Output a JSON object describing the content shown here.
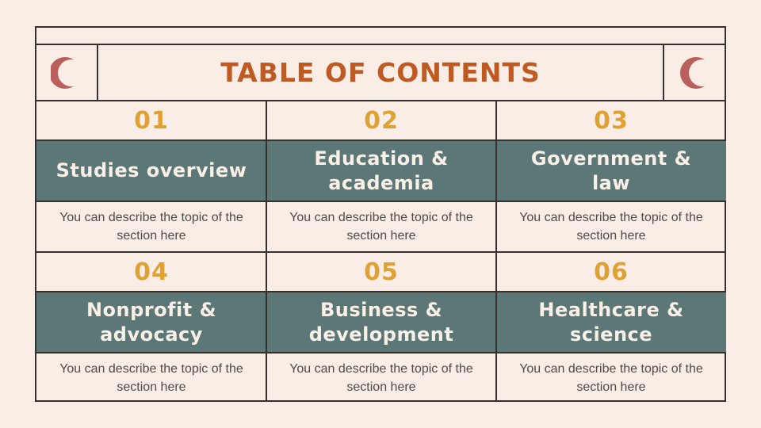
{
  "title": "TABLE OF CONTENTS",
  "colors": {
    "background": "#f9ede6",
    "title": "#bf5a23",
    "number": "#e0a133",
    "header_band": "#5b7776",
    "moon": "#b95f5c"
  },
  "icons": {
    "left": "crescent-moon-icon",
    "right": "crescent-moon-icon"
  },
  "sections": [
    {
      "number": "01",
      "heading": "Studies overview",
      "description": "You can describe the topic of the section here"
    },
    {
      "number": "02",
      "heading": "Education & academia",
      "description": "You can describe the topic of the section here"
    },
    {
      "number": "03",
      "heading": "Government & law",
      "description": "You can describe the topic of the section here"
    },
    {
      "number": "04",
      "heading": "Nonprofit & advocacy",
      "description": "You can describe the topic of the section here"
    },
    {
      "number": "05",
      "heading": "Business & development",
      "description": "You can describe the topic of the section here"
    },
    {
      "number": "06",
      "heading": "Healthcare & science",
      "description": "You can describe the topic of the section here"
    }
  ]
}
